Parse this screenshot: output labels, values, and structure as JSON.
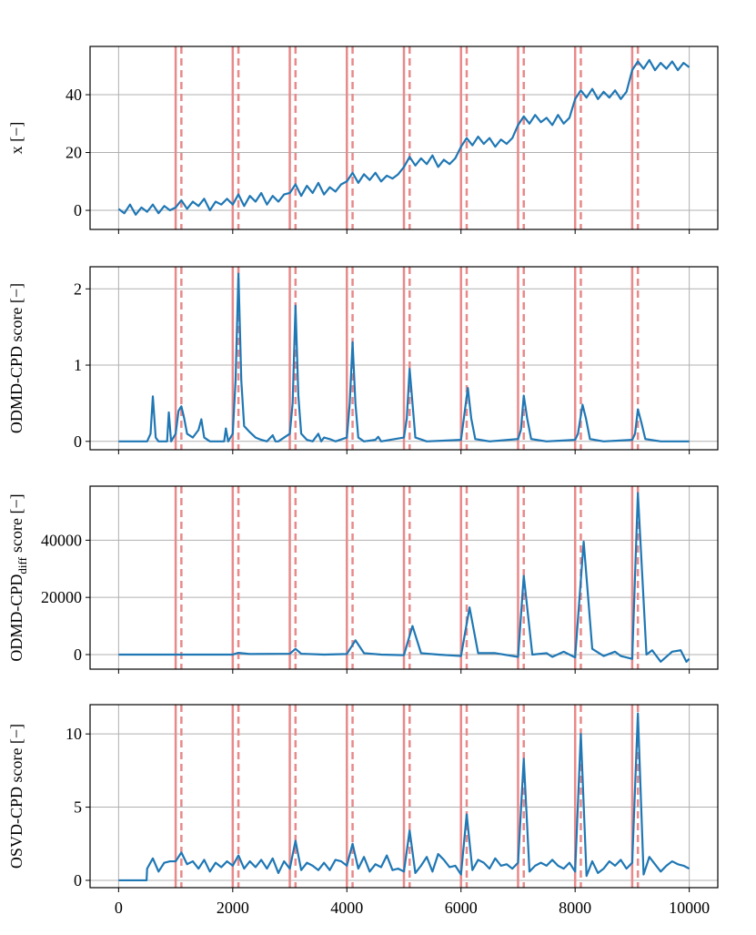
{
  "chart_data": [
    {
      "type": "line",
      "ylabel": "x [−]",
      "grid": true,
      "xtick_labels": false,
      "xlim": [
        -500,
        10500
      ],
      "ylim": [
        -6.6,
        56.7
      ],
      "xticks": [
        0,
        2000,
        4000,
        6000,
        8000,
        10000
      ],
      "yticks": [
        0,
        20,
        40
      ],
      "change_points": [
        1000,
        2000,
        3000,
        4000,
        5000,
        6000,
        7000,
        8000,
        9000
      ],
      "detections": [
        1100,
        2100,
        3100,
        4100,
        5100,
        6100,
        7100,
        8100,
        9100
      ],
      "vline_color": "#e8898a",
      "x": [
        0,
        100,
        200,
        300,
        400,
        500,
        600,
        700,
        800,
        900,
        1000,
        1100,
        1200,
        1300,
        1400,
        1500,
        1600,
        1700,
        1800,
        1900,
        2000,
        2100,
        2200,
        2300,
        2400,
        2500,
        2600,
        2700,
        2800,
        2900,
        3000,
        3100,
        3200,
        3300,
        3400,
        3500,
        3600,
        3700,
        3800,
        3900,
        4000,
        4100,
        4200,
        4300,
        4400,
        4500,
        4600,
        4700,
        4800,
        4900,
        5000,
        5100,
        5200,
        5300,
        5400,
        5500,
        5600,
        5700,
        5800,
        5900,
        6000,
        6100,
        6200,
        6300,
        6400,
        6500,
        6600,
        6700,
        6800,
        6900,
        7000,
        7100,
        7200,
        7300,
        7400,
        7500,
        7600,
        7700,
        7800,
        7900,
        8000,
        8100,
        8200,
        8300,
        8400,
        8500,
        8600,
        8700,
        8800,
        8900,
        9000,
        9100,
        9200,
        9300,
        9400,
        9500,
        9600,
        9700,
        9800,
        9900,
        10000
      ],
      "series": [
        {
          "color": "#1f77b4",
          "values": [
            0.5,
            -1,
            2,
            -1.5,
            1,
            -0.5,
            2,
            -1,
            1.5,
            0,
            1,
            3.5,
            0.5,
            3,
            1.5,
            4,
            0,
            3,
            2,
            4,
            2,
            5.5,
            1.5,
            5,
            3,
            6,
            2,
            5,
            3,
            5.5,
            6,
            9,
            5,
            8.5,
            6,
            9.5,
            5.5,
            8,
            6.5,
            9,
            10,
            13,
            9.5,
            12.5,
            10.5,
            13,
            10,
            12,
            11,
            12.5,
            15,
            18.5,
            15.5,
            18,
            16,
            19,
            15,
            17.5,
            16,
            18,
            22,
            25,
            22.5,
            25.5,
            23,
            25,
            22,
            24.5,
            23,
            25,
            29.5,
            32.5,
            30,
            33,
            30.5,
            32,
            29.5,
            33,
            30,
            32,
            38.5,
            41.5,
            39,
            42,
            38.5,
            41,
            39,
            41.5,
            38.5,
            41,
            48.5,
            51.5,
            49,
            52,
            48.5,
            51,
            49,
            51.5,
            48.5,
            51,
            49.5
          ]
        }
      ]
    },
    {
      "type": "line",
      "ylabel": "ODMD-CPD score [−]",
      "grid": true,
      "xtick_labels": false,
      "xlim": [
        -500,
        10500
      ],
      "ylim": [
        -0.11,
        2.29
      ],
      "xticks": [
        0,
        2000,
        4000,
        6000,
        8000,
        10000
      ],
      "yticks": [
        0,
        1,
        2
      ],
      "change_points": [
        1000,
        2000,
        3000,
        4000,
        5000,
        6000,
        7000,
        8000,
        9000
      ],
      "detections": [
        1100,
        2100,
        3100,
        4100,
        5100,
        6100,
        7100,
        8100,
        9100
      ],
      "vline_color": "#e8898a",
      "x": [
        0,
        500,
        560,
        600,
        650,
        700,
        850,
        880,
        920,
        1000,
        1050,
        1100,
        1150,
        1200,
        1300,
        1400,
        1450,
        1500,
        1600,
        1850,
        1880,
        1920,
        2000,
        2050,
        2100,
        2150,
        2200,
        2300,
        2400,
        2500,
        2600,
        2700,
        2750,
        2800,
        3000,
        3050,
        3100,
        3150,
        3200,
        3300,
        3400,
        3500,
        3550,
        3600,
        3700,
        3800,
        4000,
        4050,
        4100,
        4150,
        4200,
        4300,
        4500,
        4550,
        4600,
        5000,
        5050,
        5100,
        5150,
        5200,
        5400,
        6000,
        6050,
        6120,
        6180,
        6250,
        6500,
        7000,
        7050,
        7100,
        7160,
        7230,
        7500,
        8000,
        8050,
        8130,
        8190,
        8260,
        8500,
        9000,
        9050,
        9100,
        9160,
        9230,
        9500,
        10000
      ],
      "series": [
        {
          "color": "#1f77b4",
          "values": [
            0,
            0,
            0.1,
            0.59,
            0.05,
            0,
            0,
            0.38,
            0,
            0.1,
            0.4,
            0.46,
            0.3,
            0.1,
            0.05,
            0.15,
            0.29,
            0.05,
            0,
            0,
            0.17,
            0,
            0.1,
            0.8,
            2.2,
            0.8,
            0.2,
            0.12,
            0.05,
            0.02,
            0,
            0.08,
            0,
            0,
            0.1,
            0.5,
            1.78,
            0.6,
            0.1,
            0.02,
            0,
            0.1,
            0,
            0.05,
            0.03,
            0,
            0.05,
            0.5,
            1.3,
            0.5,
            0.05,
            0,
            0.02,
            0.06,
            0,
            0.05,
            0.3,
            0.95,
            0.5,
            0.05,
            0,
            0.02,
            0.3,
            0.7,
            0.3,
            0.03,
            0,
            0.03,
            0.15,
            0.6,
            0.3,
            0.03,
            0,
            0.02,
            0.1,
            0.48,
            0.3,
            0.03,
            0,
            0.02,
            0.1,
            0.42,
            0.25,
            0.03,
            0,
            0
          ]
        }
      ]
    },
    {
      "type": "line",
      "ylabel": "ODMD-CPD",
      "ylabel_sub": "diff",
      "ylabel_after": "score [−]",
      "grid": true,
      "xtick_labels": false,
      "xlim": [
        -500,
        10500
      ],
      "ylim": [
        -5100,
        58900
      ],
      "xticks": [
        0,
        2000,
        4000,
        6000,
        8000,
        10000
      ],
      "yticks": [
        0,
        20000,
        40000
      ],
      "change_points": [
        1000,
        2000,
        3000,
        4000,
        5000,
        6000,
        7000,
        8000,
        9000
      ],
      "detections": [
        1100,
        2100,
        3100,
        4100,
        5100,
        6100,
        7100,
        8100,
        9100
      ],
      "vline_color": "#e8898a",
      "x": [
        0,
        1000,
        2000,
        2100,
        2300,
        3000,
        3100,
        3200,
        3600,
        4000,
        4150,
        4300,
        4600,
        5000,
        5150,
        5300,
        5600,
        6000,
        6150,
        6300,
        6600,
        7000,
        7100,
        7250,
        7500,
        7600,
        7800,
        8000,
        8150,
        8300,
        8500,
        8700,
        8800,
        9000,
        9100,
        9250,
        9350,
        9500,
        9700,
        9850,
        9950,
        10000
      ],
      "series": [
        {
          "color": "#1f77b4",
          "values": [
            0,
            0,
            0,
            600,
            200,
            300,
            2000,
            300,
            0,
            200,
            5000,
            500,
            0,
            -200,
            10000,
            500,
            0,
            -500,
            16500,
            500,
            500,
            -800,
            27500,
            0,
            500,
            -800,
            1000,
            -1000,
            39500,
            2000,
            -500,
            1000,
            -500,
            -1500,
            56500,
            0,
            1500,
            -2500,
            1000,
            1500,
            -2500,
            -1500
          ]
        }
      ]
    },
    {
      "type": "line",
      "ylabel": "OSVD-CPD score [−]",
      "grid": true,
      "xtick_labels": true,
      "xlim": [
        -500,
        10500
      ],
      "ylim": [
        -0.5,
        12
      ],
      "xticks": [
        0,
        2000,
        4000,
        6000,
        8000,
        10000
      ],
      "yticks": [
        0,
        5,
        10
      ],
      "change_points": [
        1000,
        2000,
        3000,
        4000,
        5000,
        6000,
        7000,
        8000,
        9000
      ],
      "detections": [
        1100,
        2100,
        3100,
        4100,
        5100,
        6100,
        7100,
        8100,
        9100
      ],
      "vline_color": "#e8898a",
      "x": [
        0,
        490,
        500,
        600,
        700,
        800,
        900,
        1000,
        1100,
        1200,
        1300,
        1400,
        1500,
        1600,
        1700,
        1800,
        1900,
        2000,
        2100,
        2200,
        2300,
        2400,
        2500,
        2600,
        2700,
        2800,
        2900,
        3000,
        3100,
        3200,
        3300,
        3400,
        3500,
        3600,
        3700,
        3800,
        3900,
        4000,
        4100,
        4200,
        4300,
        4400,
        4500,
        4600,
        4700,
        4800,
        4900,
        5000,
        5100,
        5200,
        5300,
        5400,
        5500,
        5600,
        5700,
        5800,
        5900,
        6000,
        6100,
        6200,
        6300,
        6400,
        6500,
        6600,
        6700,
        6800,
        6900,
        7000,
        7100,
        7200,
        7300,
        7400,
        7500,
        7600,
        7700,
        7800,
        7900,
        8000,
        8100,
        8200,
        8300,
        8400,
        8500,
        8600,
        8700,
        8800,
        8900,
        9000,
        9100,
        9200,
        9300,
        9400,
        9500,
        9600,
        9700,
        9800,
        9900,
        10000
      ],
      "series": [
        {
          "color": "#1f77b4",
          "values": [
            0,
            0,
            0.8,
            1.5,
            0.6,
            1.2,
            1.3,
            1.3,
            1.9,
            1.1,
            1.3,
            0.8,
            1.4,
            0.6,
            1.2,
            0.9,
            1.3,
            1,
            1.7,
            0.8,
            1.3,
            0.9,
            1.4,
            0.8,
            1.5,
            0.5,
            1.3,
            0.8,
            2.7,
            0.7,
            1.2,
            1,
            0.7,
            1.2,
            0.7,
            1.4,
            1.3,
            1,
            2.5,
            0.8,
            1.6,
            0.6,
            1.1,
            0.9,
            1.7,
            0.7,
            0.8,
            0.6,
            3.4,
            0.5,
            1,
            1.6,
            0.6,
            1.8,
            1.4,
            0.9,
            1,
            0.4,
            4.5,
            0.7,
            1.4,
            1.2,
            0.8,
            1.5,
            1,
            1.1,
            0.8,
            1.2,
            8.3,
            0.6,
            1,
            1.2,
            1,
            1.4,
            1,
            0.8,
            1.2,
            0.6,
            10,
            0.3,
            1.3,
            0.5,
            0.8,
            1.3,
            1,
            1.4,
            0.8,
            1.2,
            11.4,
            0.4,
            1.6,
            1.1,
            0.6,
            1,
            1.3,
            1.1,
            1,
            0.8
          ]
        }
      ]
    }
  ]
}
